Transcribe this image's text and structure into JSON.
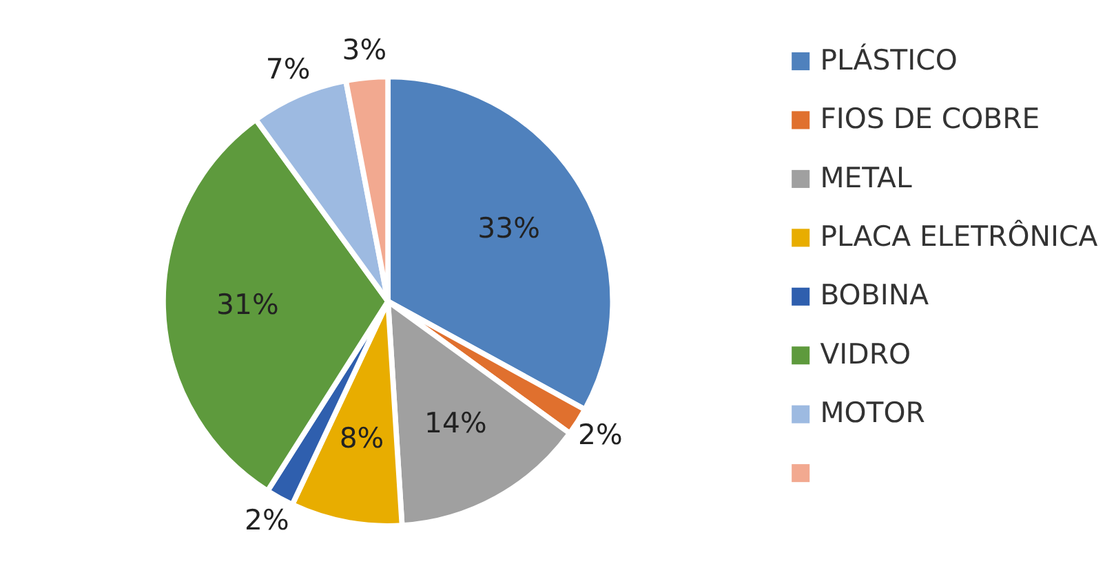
{
  "chart_data": {
    "type": "pie",
    "categories": [
      "PLÁSTICO",
      "FIOS DE COBRE",
      "METAL",
      "PLACA ELETRÔNICA",
      "BOBINA",
      "VIDRO",
      "MOTOR",
      null
    ],
    "values": [
      33,
      2,
      14,
      8,
      2,
      31,
      7,
      3
    ],
    "colors": [
      "#4f81bd",
      "#e0702e",
      "#a0a0a0",
      "#e8ad00",
      "#2f5fae",
      "#5e9a3d",
      "#9dbae1",
      "#f2a990"
    ],
    "value_labels": [
      "33%",
      "2%",
      "14%",
      "8%",
      "2%",
      "31%",
      "7%",
      "3%"
    ],
    "legend": "right"
  }
}
